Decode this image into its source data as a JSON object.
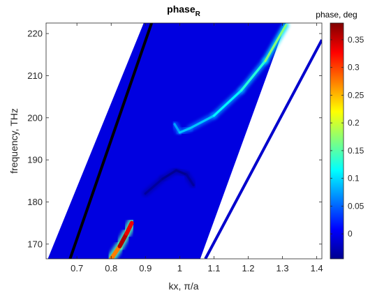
{
  "chart_data": {
    "type": "heatmap",
    "title": "phase",
    "title_subscript": "R",
    "xlabel": "kx, π/a",
    "ylabel": "frequency, THz",
    "xlim": [
      0.61,
      1.415
    ],
    "ylim": [
      166.5,
      222.5
    ],
    "x_ticks": [
      0.7,
      0.8,
      0.9,
      1,
      1.1,
      1.2,
      1.3,
      1.4
    ],
    "x_tick_labels": [
      "0.7",
      "0.8",
      "0.9",
      "1",
      "1.1",
      "1.2",
      "1.3",
      "1.4"
    ],
    "y_ticks": [
      170,
      180,
      190,
      200,
      210,
      220
    ],
    "y_tick_labels": [
      "170",
      "180",
      "190",
      "200",
      "210",
      "220"
    ],
    "grid": false,
    "colormap": "jet",
    "colorbar": {
      "title": "phase, deg",
      "clim": [
        -0.045,
        0.38
      ],
      "ticks": [
        0,
        0.05,
        0.1,
        0.15,
        0.2,
        0.25,
        0.3,
        0.35
      ],
      "tick_labels": [
        "0",
        "0.05",
        "0.1",
        "0.15",
        "0.2",
        "0.25",
        "0.3",
        "0.35"
      ]
    },
    "background_value": -0.005,
    "data_region": {
      "left_edge": [
        [
          0.615,
          166.5
        ],
        [
          0.895,
          222.5
        ]
      ],
      "right_edge": [
        [
          1.06,
          166.5
        ],
        [
          1.31,
          222.5
        ]
      ]
    },
    "light_lines": [
      {
        "color": "#000000",
        "points": [
          [
            0.68,
            166.5
          ],
          [
            0.918,
            222.5
          ]
        ]
      },
      {
        "color": "#0000cd",
        "points": [
          [
            1.075,
            166.5
          ],
          [
            1.415,
            218.5
          ]
        ]
      }
    ],
    "features": [
      {
        "name": "upper-band",
        "points": [
          [
            0.985,
            198.5
          ],
          [
            1.0,
            196.5
          ],
          [
            1.03,
            197.5
          ],
          [
            1.1,
            200.5
          ],
          [
            1.18,
            206.5
          ],
          [
            1.25,
            213.5
          ],
          [
            1.31,
            222.0
          ]
        ],
        "values": [
          0.05,
          0.1,
          0.08,
          0.1,
          0.12,
          0.14,
          0.2
        ]
      },
      {
        "name": "lower-band",
        "points": [
          [
            0.9,
            182.0
          ],
          [
            0.95,
            185.5
          ],
          [
            0.99,
            187.5
          ],
          [
            1.02,
            186.5
          ],
          [
            1.04,
            184.0
          ]
        ],
        "values": [
          -0.03,
          -0.035,
          -0.04,
          -0.035,
          -0.03
        ]
      },
      {
        "name": "hot-spot",
        "points": [
          [
            0.8,
            166.5
          ],
          [
            0.825,
            169.5
          ],
          [
            0.845,
            172.5
          ],
          [
            0.86,
            175.0
          ]
        ],
        "values": [
          0.2,
          0.35,
          0.37,
          0.3
        ]
      }
    ]
  }
}
